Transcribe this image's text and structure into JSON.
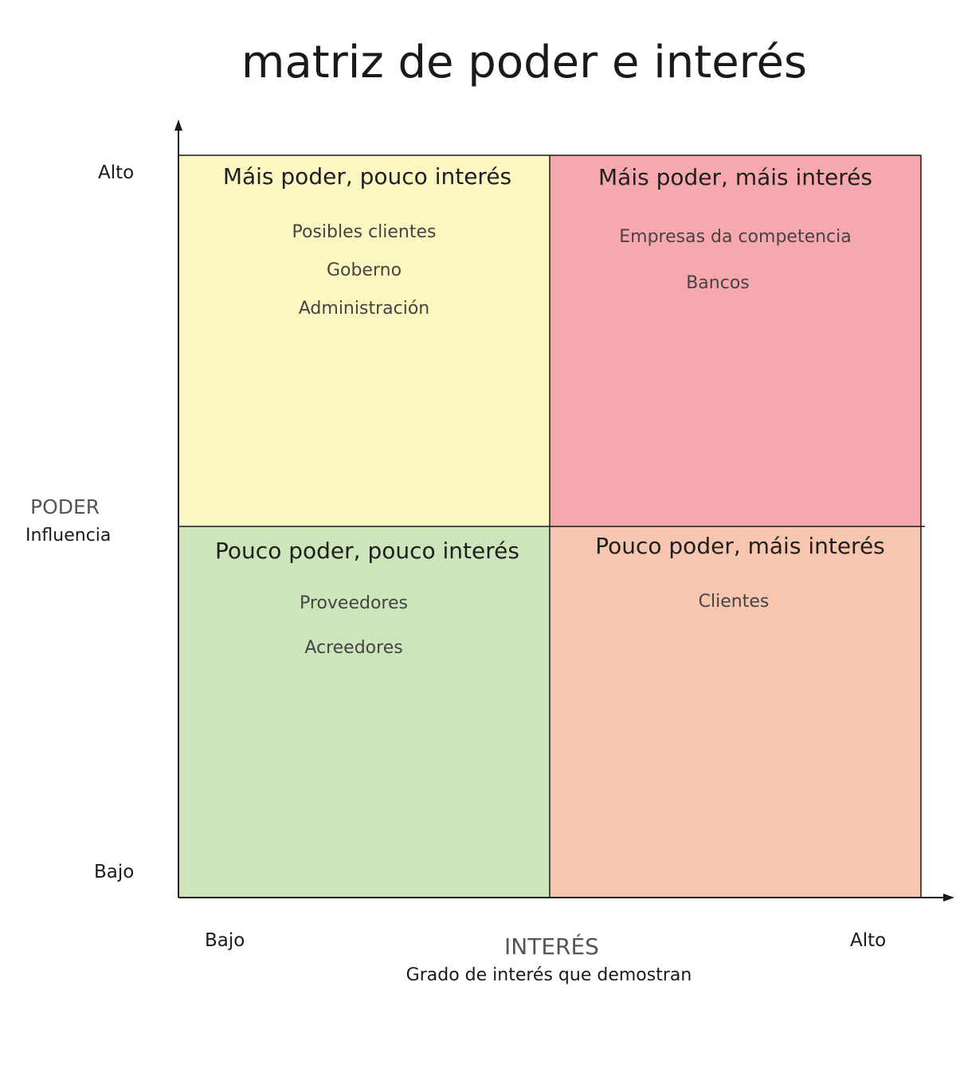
{
  "title": "matriz de poder e interés",
  "colors": {
    "top_left": "#fcf7c0",
    "top_right": "#f6a8ae",
    "bottom_left": "#cde5ba",
    "bottom_right": "#f8c5ae",
    "axis": "#1a1a1a"
  },
  "y_axis": {
    "name": "PODER",
    "sub": "Influencia",
    "high": "Alto",
    "low": "Bajo"
  },
  "x_axis": {
    "name": "INTERÉS",
    "sub": "Grado de interés que demostran",
    "low": "Bajo",
    "high": "Alto"
  },
  "quadrants": {
    "top_left": {
      "heading": "Máis poder, pouco interés",
      "items": [
        "Posibles clientes",
        "Goberno",
        "Administración"
      ]
    },
    "top_right": {
      "heading": "Máis poder, máis interés",
      "items": [
        "Empresas da competencia",
        "Bancos"
      ]
    },
    "bottom_left": {
      "heading": "Pouco poder, pouco interés",
      "items": [
        "Proveedores",
        "Acreedores"
      ]
    },
    "bottom_right": {
      "heading": "Pouco poder, máis interés",
      "items": [
        "Clientes"
      ]
    }
  }
}
